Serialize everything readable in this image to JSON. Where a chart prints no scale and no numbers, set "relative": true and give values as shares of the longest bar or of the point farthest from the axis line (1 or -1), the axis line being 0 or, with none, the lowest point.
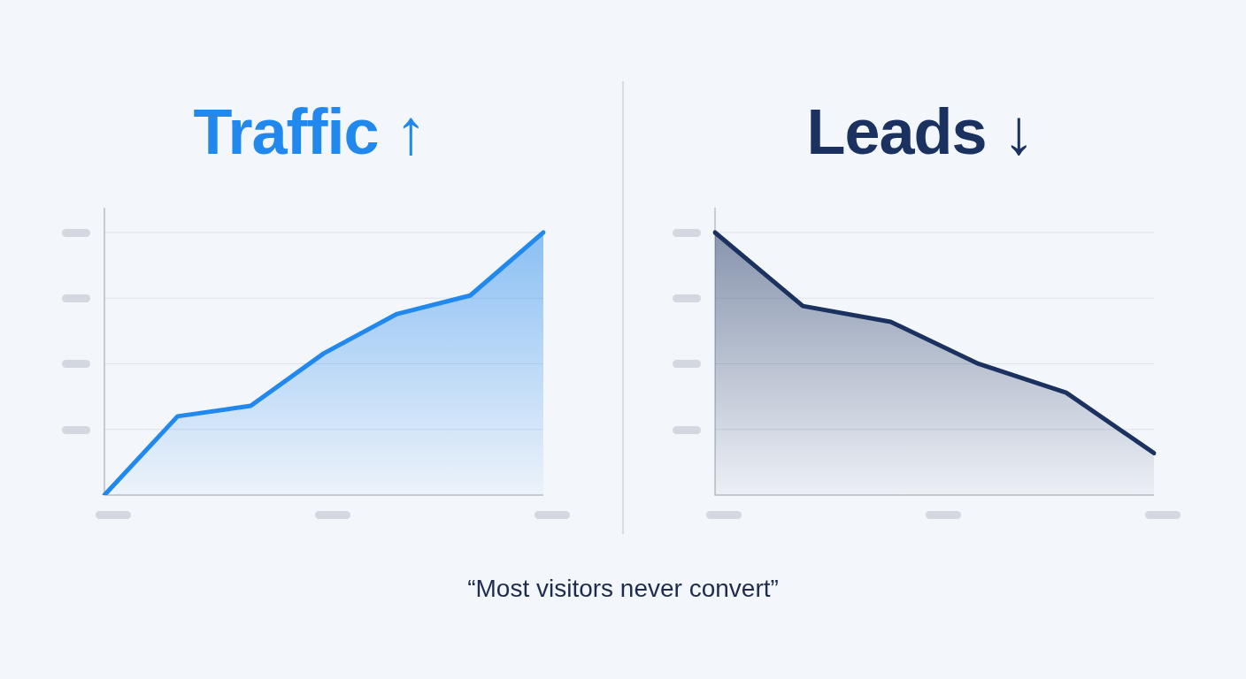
{
  "chart_data": [
    {
      "type": "area",
      "title": "Traffic ↑",
      "relative": true,
      "grid": "y",
      "categories": [
        null,
        null,
        null,
        null,
        null,
        null,
        null
      ],
      "series": [
        {
          "color": "#2188ee",
          "values": [
            0,
            0.3,
            0.34,
            0.54,
            0.69,
            0.76,
            1
          ]
        }
      ],
      "annotations": [
        "“Most visitors never convert”"
      ]
    },
    {
      "type": "area",
      "title": "Leads ↓",
      "relative": true,
      "grid": "y",
      "categories": [
        null,
        null,
        null,
        null,
        null,
        null
      ],
      "series": [
        {
          "color": "#1b3260",
          "values": [
            1,
            0.72,
            0.66,
            0.5,
            0.39,
            0.16
          ]
        }
      ]
    }
  ]
}
